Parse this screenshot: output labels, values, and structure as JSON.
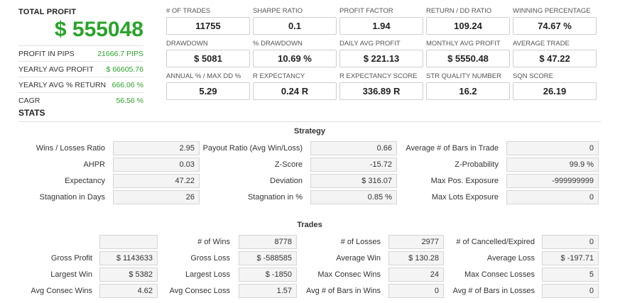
{
  "summary": {
    "total_profit_label": "TOTAL PROFIT",
    "total_profit_value": "$ 555048",
    "rows": [
      {
        "label": "PROFIT IN PIPS",
        "value": "21666.7 PIPS"
      },
      {
        "label": "YEARLY AVG PROFIT",
        "value": "$ 66605.76"
      },
      {
        "label": "YEARLY AVG % RETURN",
        "value": "666.06 %"
      },
      {
        "label": "CAGR",
        "value": "56.56 %"
      }
    ]
  },
  "metrics": [
    {
      "label": "# OF TRADES",
      "value": "11755"
    },
    {
      "label": "SHARPE RATIO",
      "value": "0.1"
    },
    {
      "label": "PROFIT FACTOR",
      "value": "1.94"
    },
    {
      "label": "RETURN / DD RATIO",
      "value": "109.24"
    },
    {
      "label": "WINNING PERCENTAGE",
      "value": "74.67 %"
    },
    {
      "label": "DRAWDOWN",
      "value": "$ 5081"
    },
    {
      "label": "% DRAWDOWN",
      "value": "10.69 %"
    },
    {
      "label": "DAILY AVG PROFIT",
      "value": "$ 221.13"
    },
    {
      "label": "MONTHLY AVG PROFIT",
      "value": "$ 5550.48"
    },
    {
      "label": "AVERAGE TRADE",
      "value": "$ 47.22"
    },
    {
      "label": "ANNUAL % / MAX DD %",
      "value": "5.29"
    },
    {
      "label": "R EXPECTANCY",
      "value": "0.24 R"
    },
    {
      "label": "R EXPECTANCY SCORE",
      "value": "336.89 R"
    },
    {
      "label": "STR QUALITY NUMBER",
      "value": "16.2"
    },
    {
      "label": "SQN SCORE",
      "value": "26.19"
    }
  ],
  "stats_title": "STATS",
  "strategy": {
    "title": "Strategy",
    "rows": [
      [
        {
          "label": "Wins / Losses Ratio",
          "value": "2.95"
        },
        {
          "label": "Payout Ratio (Avg Win/Loss)",
          "value": "0.66"
        },
        {
          "label": "Average # of Bars in Trade",
          "value": "0"
        }
      ],
      [
        {
          "label": "AHPR",
          "value": "0.03"
        },
        {
          "label": "Z-Score",
          "value": "-15.72"
        },
        {
          "label": "Z-Probability",
          "value": "99.9 %"
        }
      ],
      [
        {
          "label": "Expectancy",
          "value": "47.22"
        },
        {
          "label": "Deviation",
          "value": "$ 316.07"
        },
        {
          "label": "Max Pos. Exposure",
          "value": "-999999999"
        }
      ],
      [
        {
          "label": "Stagnation in Days",
          "value": "26"
        },
        {
          "label": "Stagnation in %",
          "value": "0.85 %"
        },
        {
          "label": "Max Lots Exposure",
          "value": "0"
        }
      ]
    ]
  },
  "trades": {
    "title": "Trades",
    "rows": [
      [
        {
          "label": "",
          "value": ""
        },
        {
          "label": "# of Wins",
          "value": "8778"
        },
        {
          "label": "# of Losses",
          "value": "2977"
        },
        {
          "label": "# of Cancelled/Expired",
          "value": "0"
        }
      ],
      [
        {
          "label": "Gross Profit",
          "value": "$ 1143633"
        },
        {
          "label": "Gross Loss",
          "value": "$ -588585"
        },
        {
          "label": "Average Win",
          "value": "$ 130.28"
        },
        {
          "label": "Average Loss",
          "value": "$ -197.71"
        }
      ],
      [
        {
          "label": "Largest Win",
          "value": "$ 5382"
        },
        {
          "label": "Largest Loss",
          "value": "$ -1850"
        },
        {
          "label": "Max Consec Wins",
          "value": "24"
        },
        {
          "label": "Max Consec Losses",
          "value": "5"
        }
      ],
      [
        {
          "label": "Avg Consec Wins",
          "value": "4.62"
        },
        {
          "label": "Avg Consec Loss",
          "value": "1.57"
        },
        {
          "label": "Avg # of Bars in Wins",
          "value": "0"
        },
        {
          "label": "Avg # of Bars in Losses",
          "value": "0"
        }
      ]
    ]
  }
}
